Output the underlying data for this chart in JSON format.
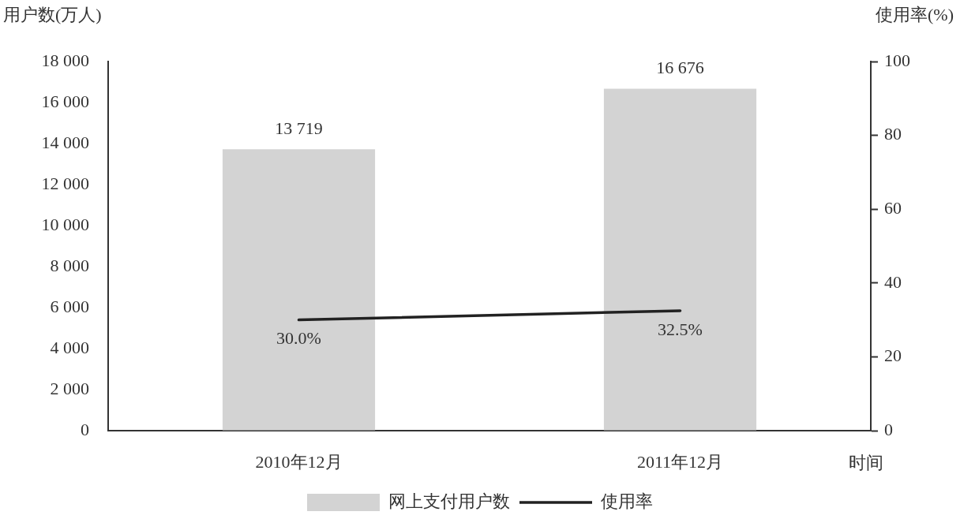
{
  "chart_data": {
    "type": "bar",
    "xlabel": "时间",
    "ylabel": "用户数(万人)",
    "y2label": "使用率(%)",
    "categories": [
      "2010年12月",
      "2011年12月"
    ],
    "series": [
      {
        "name": "网上支付用户数",
        "color": "#d3d3d3",
        "values": [
          13719,
          16676
        ],
        "value_labels": [
          "13 719",
          "16 676"
        ]
      },
      {
        "name": "使用率",
        "type": "line",
        "axis": "y2",
        "color": "#222222",
        "values": [
          30.0,
          32.5
        ],
        "value_labels": [
          "30.0%",
          "32.5%"
        ]
      }
    ],
    "ylim": [
      0,
      18000
    ],
    "yticks": [
      0,
      {
        "value": 2000,
        "label": "2 000"
      },
      {
        "value": 4000,
        "label": "4 000"
      },
      {
        "value": 6000,
        "label": "6 000"
      },
      {
        "value": 8000,
        "label": "8 000"
      },
      {
        "value": 10000,
        "label": "10 000"
      },
      {
        "value": 12000,
        "label": "12 000"
      },
      {
        "value": 14000,
        "label": "14 000"
      },
      {
        "value": 16000,
        "label": "16 000"
      },
      {
        "value": 18000,
        "label": "18 000"
      }
    ],
    "y2lim": [
      0,
      100
    ],
    "y2ticks": [
      0,
      20,
      40,
      60,
      80,
      100
    ],
    "grid": false,
    "legend": "bottom",
    "marker": "none"
  }
}
